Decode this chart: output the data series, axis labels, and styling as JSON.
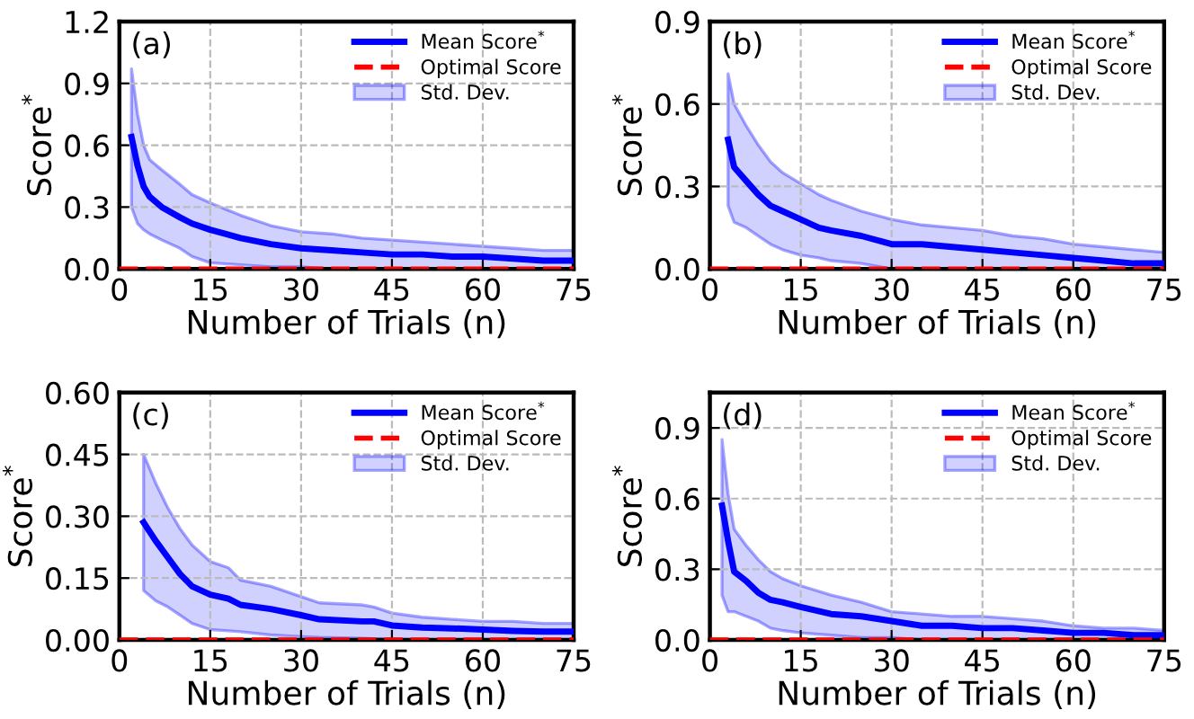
{
  "chart_data": [
    {
      "type": "line",
      "annotations": [
        "(a)",
        "Std. Dev."
      ],
      "xlabel": "Number of Trials (n)",
      "ylabel": "Score$^{*}$",
      "xlim": [
        0,
        75
      ],
      "xticks": [
        0,
        15,
        30,
        45,
        60,
        75
      ],
      "ylim": [
        0,
        1.2
      ],
      "yticks": [
        {
          "value": 0,
          "label": "0.0"
        },
        0.3,
        0.6,
        0.9,
        1.2
      ],
      "grid": true,
      "legend": "top right",
      "line_style": "solid",
      "marker": "none",
      "ref_lines": [
        {
          "axis": "y",
          "value": 0,
          "label": "Optimal Score",
          "color": "#ff0000",
          "line_style": "dashed"
        }
      ],
      "series": [
        {
          "name": "Mean Score$^{*}$",
          "color": "#0000ff",
          "x": [
            2,
            3,
            4,
            5,
            7,
            10,
            12,
            15,
            20,
            25,
            30,
            35,
            40,
            45,
            50,
            55,
            60,
            65,
            70,
            75
          ],
          "values": [
            0.64,
            0.5,
            0.4,
            0.35,
            0.3,
            0.25,
            0.22,
            0.19,
            0.15,
            0.12,
            0.1,
            0.09,
            0.08,
            0.07,
            0.07,
            0.06,
            0.06,
            0.05,
            0.04,
            0.04
          ],
          "lower": [
            0.3,
            0.22,
            0.19,
            0.17,
            0.14,
            0.1,
            0.06,
            0.03,
            0.02,
            0.01,
            0.01,
            0,
            0,
            0,
            0,
            0,
            0,
            0,
            0,
            0
          ],
          "upper": [
            0.97,
            0.75,
            0.6,
            0.53,
            0.48,
            0.41,
            0.36,
            0.32,
            0.26,
            0.21,
            0.18,
            0.17,
            0.15,
            0.14,
            0.13,
            0.12,
            0.11,
            0.1,
            0.09,
            0.09
          ]
        }
      ]
    },
    {
      "type": "line",
      "annotations": [
        "(b)",
        "Std. Dev."
      ],
      "xlabel": "Number of Trials (n)",
      "ylabel": "Score$^{*}$",
      "xlim": [
        0,
        75
      ],
      "xticks": [
        0,
        15,
        30,
        45,
        60,
        75
      ],
      "ylim": [
        0,
        0.9
      ],
      "yticks": [
        {
          "value": 0,
          "label": "0.0"
        },
        0.3,
        0.6,
        0.9
      ],
      "grid": true,
      "legend": "top right",
      "line_style": "solid",
      "marker": "none",
      "ref_lines": [
        {
          "axis": "y",
          "value": 0,
          "label": "Optimal Score",
          "color": "#ff0000",
          "line_style": "dashed"
        }
      ],
      "series": [
        {
          "name": "Mean Score$^{*}$",
          "color": "#0000ff",
          "x": [
            3,
            4,
            6,
            8,
            10,
            12,
            15,
            18,
            20,
            25,
            30,
            35,
            40,
            45,
            50,
            55,
            60,
            65,
            70,
            75
          ],
          "values": [
            0.47,
            0.37,
            0.32,
            0.27,
            0.23,
            0.21,
            0.18,
            0.15,
            0.14,
            0.12,
            0.09,
            0.09,
            0.08,
            0.07,
            0.06,
            0.05,
            0.04,
            0.03,
            0.02,
            0.02
          ],
          "lower": [
            0.23,
            0.17,
            0.15,
            0.12,
            0.09,
            0.07,
            0.05,
            0.04,
            0.03,
            0.02,
            0,
            0,
            0,
            0,
            0,
            0,
            0,
            0,
            0,
            0
          ],
          "upper": [
            0.71,
            0.6,
            0.52,
            0.45,
            0.39,
            0.35,
            0.31,
            0.27,
            0.25,
            0.21,
            0.18,
            0.16,
            0.15,
            0.14,
            0.12,
            0.11,
            0.09,
            0.08,
            0.07,
            0.06
          ]
        }
      ]
    },
    {
      "type": "line",
      "annotations": [
        "(c)",
        "Std. Dev."
      ],
      "xlabel": "Number of Trials (n)",
      "ylabel": "Score$^{*}$",
      "xlim": [
        0,
        75
      ],
      "xticks": [
        0,
        15,
        30,
        45,
        60,
        75
      ],
      "ylim": [
        0,
        0.6
      ],
      "yticks": [
        {
          "value": 0,
          "label": "0.00"
        },
        0.15,
        {
          "value": 0.3,
          "label": "0.30"
        },
        0.45,
        {
          "value": 0.6,
          "label": "0.60"
        }
      ],
      "grid": true,
      "legend": "top right",
      "line_style": "solid",
      "marker": "none",
      "ref_lines": [
        {
          "axis": "y",
          "value": 0,
          "label": "Optimal Score",
          "color": "#ff0000",
          "line_style": "dashed"
        }
      ],
      "series": [
        {
          "name": "Mean Score$^{*}$",
          "color": "#0000ff",
          "x": [
            4,
            6,
            8,
            10,
            12,
            15,
            18,
            20,
            25,
            30,
            33,
            40,
            42,
            45,
            50,
            55,
            60,
            65,
            70,
            75
          ],
          "values": [
            0.285,
            0.24,
            0.2,
            0.16,
            0.13,
            0.11,
            0.1,
            0.085,
            0.075,
            0.06,
            0.05,
            0.045,
            0.045,
            0.035,
            0.03,
            0.028,
            0.025,
            0.022,
            0.02,
            0.02
          ],
          "lower": [
            0.12,
            0.095,
            0.08,
            0.06,
            0.04,
            0.025,
            0.022,
            0.02,
            0.012,
            0.008,
            0.006,
            0.004,
            0.003,
            0.002,
            0,
            0,
            0,
            0,
            0,
            0
          ],
          "upper": [
            0.45,
            0.38,
            0.32,
            0.27,
            0.23,
            0.19,
            0.175,
            0.145,
            0.13,
            0.105,
            0.09,
            0.085,
            0.08,
            0.065,
            0.055,
            0.05,
            0.045,
            0.045,
            0.04,
            0.04
          ]
        }
      ]
    },
    {
      "type": "line",
      "annotations": [
        "(d)",
        "Std. Dev."
      ],
      "xlabel": "Number of Trials (n)",
      "ylabel": "Score$^{*}$",
      "xlim": [
        0,
        75
      ],
      "xticks": [
        0,
        15,
        30,
        45,
        60,
        75
      ],
      "ylim": [
        0,
        1.05
      ],
      "yticks": [
        {
          "value": 0,
          "label": "0.0"
        },
        0.3,
        0.6,
        0.9
      ],
      "grid": true,
      "legend": "top right",
      "line_style": "solid",
      "marker": "none",
      "ref_lines": [
        {
          "axis": "y",
          "value": 0,
          "label": "Optimal Score",
          "color": "#ff0000",
          "line_style": "dashed"
        }
      ],
      "series": [
        {
          "name": "Mean Score$^{*}$",
          "color": "#0000ff",
          "x": [
            2,
            3,
            4,
            6,
            8,
            10,
            12,
            15,
            20,
            25,
            30,
            35,
            40,
            45,
            50,
            55,
            60,
            65,
            70,
            75
          ],
          "values": [
            0.57,
            0.42,
            0.29,
            0.25,
            0.2,
            0.17,
            0.16,
            0.14,
            0.11,
            0.1,
            0.08,
            0.06,
            0.06,
            0.05,
            0.05,
            0.04,
            0.03,
            0.03,
            0.02,
            0.02
          ],
          "lower": [
            0.19,
            0.12,
            0.12,
            0.1,
            0.08,
            0.05,
            0.04,
            0.03,
            0.02,
            0.01,
            0.01,
            0,
            0,
            0,
            0,
            0,
            0,
            0,
            0,
            0
          ],
          "upper": [
            0.85,
            0.62,
            0.47,
            0.4,
            0.34,
            0.29,
            0.26,
            0.23,
            0.19,
            0.16,
            0.12,
            0.11,
            0.1,
            0.1,
            0.09,
            0.08,
            0.06,
            0.05,
            0.05,
            0.04
          ]
        }
      ]
    }
  ]
}
